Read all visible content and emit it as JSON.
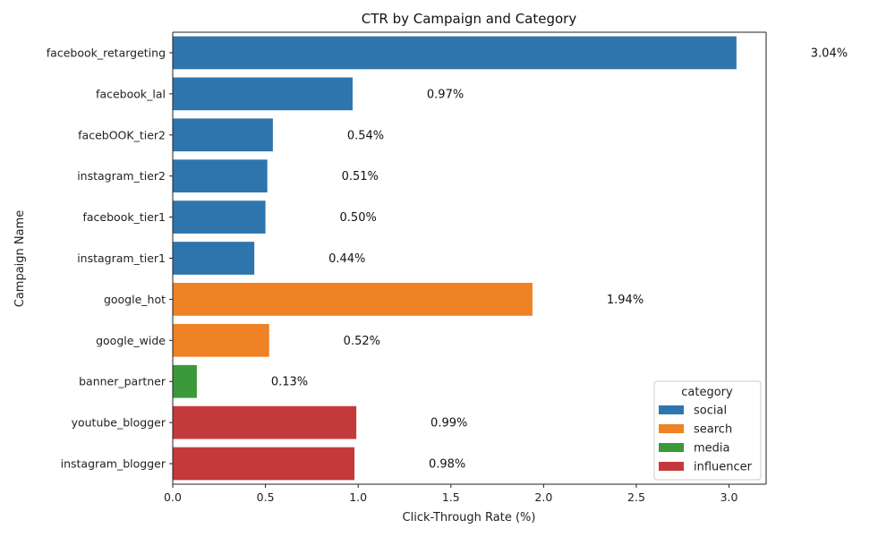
{
  "chart_data": {
    "type": "bar",
    "orientation": "horizontal",
    "title": "CTR by Campaign and Category",
    "xlabel": "Click-Through Rate (%)",
    "ylabel": "Campaign Name",
    "xlim": [
      0,
      3.2
    ],
    "xticks": [
      0.0,
      0.5,
      1.0,
      1.5,
      2.0,
      2.5,
      3.0
    ],
    "xtick_labels": [
      "0.0",
      "0.5",
      "1.0",
      "1.5",
      "2.0",
      "2.5",
      "3.0"
    ],
    "grid": false,
    "categories": [
      "facebook_retargeting",
      "facebook_lal",
      "facebOOK_tier2",
      "instagram_tier2",
      "facebook_tier1",
      "instagram_tier1",
      "google_hot",
      "google_wide",
      "banner_partner",
      "youtube_blogger",
      "instagram_blogger"
    ],
    "values": [
      3.04,
      0.97,
      0.54,
      0.51,
      0.5,
      0.44,
      1.94,
      0.52,
      0.13,
      0.99,
      0.98
    ],
    "value_labels": [
      "3.04%",
      "0.97%",
      "0.54%",
      "0.51%",
      "0.50%",
      "0.44%",
      "1.94%",
      "0.52%",
      "0.13%",
      "0.99%",
      "0.98%"
    ],
    "bar_category": [
      "social",
      "social",
      "social",
      "social",
      "social",
      "social",
      "search",
      "search",
      "media",
      "influencer",
      "influencer"
    ],
    "legend": {
      "title": "category",
      "placement": "lower-right",
      "entries": [
        {
          "name": "social",
          "color": "#2e75ae"
        },
        {
          "name": "search",
          "color": "#ee8224"
        },
        {
          "name": "media",
          "color": "#3a9a3a"
        },
        {
          "name": "influencer",
          "color": "#c43a3c"
        }
      ]
    }
  }
}
